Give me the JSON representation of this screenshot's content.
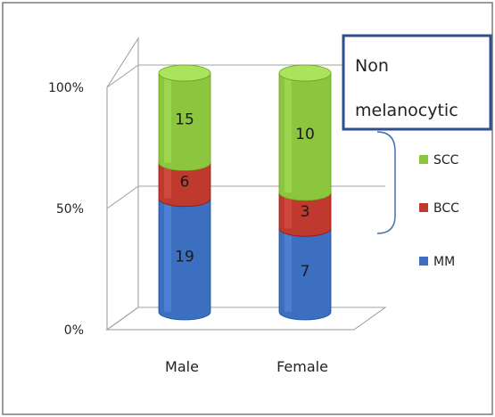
{
  "chart_data": {
    "type": "bar",
    "stacked": true,
    "normalized_percent": true,
    "style": "3d-cylinder",
    "categories": [
      "Male",
      "Female"
    ],
    "series": [
      {
        "name": "MM",
        "values": [
          19,
          7
        ],
        "color": "#3c6fc0"
      },
      {
        "name": "BCC",
        "values": [
          6,
          3
        ],
        "color": "#c0392f"
      },
      {
        "name": "SCC",
        "values": [
          15,
          10
        ],
        "color": "#8cc63f"
      }
    ],
    "value_labels": [
      [
        "19",
        "7"
      ],
      [
        "6",
        "3"
      ],
      [
        "15",
        "10"
      ]
    ],
    "y_ticks": [
      "0%",
      "50%",
      "100%"
    ],
    "ylim": [
      0,
      100
    ],
    "grid": true,
    "legend_position": "right",
    "annotation": {
      "line1": "Non",
      "line2": "melanocytic",
      "border_color": "#2d4f8a"
    }
  }
}
